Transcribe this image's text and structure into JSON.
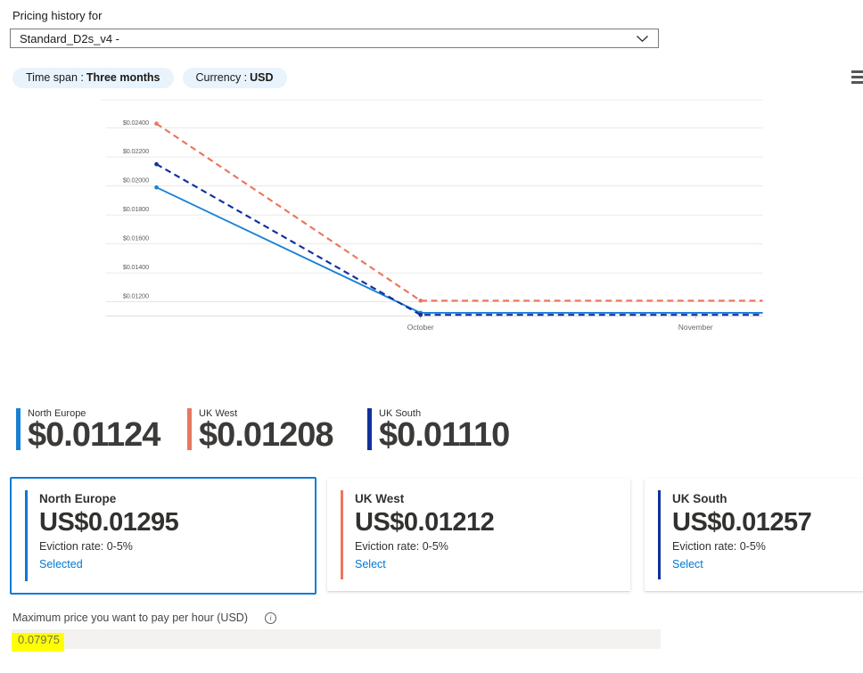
{
  "header": {
    "title": "Pricing history for",
    "dropdown_value": "Standard_D2s_v4 -",
    "filters": {
      "time_span_label": "Time span :",
      "time_span_value": "Three months",
      "currency_label": "Currency :",
      "currency_value": "USD"
    }
  },
  "colors": {
    "accent": "#0f7bd4",
    "link": "#0078d4",
    "pill_bg": "#e8f3fb",
    "north_europe": "#1981d4",
    "uk_west": "#e97760",
    "uk_south": "#10309e",
    "highlight": "#ffff00"
  },
  "chart_data": {
    "type": "line",
    "title": "",
    "xlabel": "",
    "ylabel": "",
    "grid": true,
    "legend_position": "bottom-left",
    "x_unit": "months (0 = October, 1 = November)",
    "x_range": [
      -0.96,
      1.244
    ],
    "ylim": [
      0.011,
      0.0245
    ],
    "y_ticks": [
      {
        "value": 0.024,
        "label": "$0.02400"
      },
      {
        "value": 0.022,
        "label": "$0.02200"
      },
      {
        "value": 0.02,
        "label": "$0.02000"
      },
      {
        "value": 0.018,
        "label": "$0.01800"
      },
      {
        "value": 0.016,
        "label": "$0.01600"
      },
      {
        "value": 0.014,
        "label": "$0.01400"
      },
      {
        "value": 0.012,
        "label": "$0.01200"
      }
    ],
    "x_ticks": [
      {
        "pos": 0,
        "label": "October"
      },
      {
        "pos": 1,
        "label": "November"
      }
    ],
    "series": [
      {
        "name": "North Europe",
        "color": "#1981d4",
        "line_style": "solid",
        "points": [
          {
            "x": -0.96,
            "y": 0.0199,
            "marker": true
          },
          {
            "x": 0,
            "y": 0.01124,
            "marker": true
          },
          {
            "x": 1.244,
            "y": 0.01124,
            "marker": false
          }
        ]
      },
      {
        "name": "UK West",
        "color": "#e97760",
        "line_style": "dashed",
        "points": [
          {
            "x": -0.96,
            "y": 0.0243,
            "marker": true
          },
          {
            "x": 0,
            "y": 0.01208,
            "marker": true
          },
          {
            "x": 1.244,
            "y": 0.01208,
            "marker": false
          }
        ]
      },
      {
        "name": "UK South",
        "color": "#10309e",
        "line_style": "dashed",
        "points": [
          {
            "x": -0.96,
            "y": 0.0215,
            "marker": true
          },
          {
            "x": 0,
            "y": 0.0111,
            "marker": true
          },
          {
            "x": 1.244,
            "y": 0.0111,
            "marker": false
          }
        ]
      }
    ]
  },
  "legend": {
    "items": [
      {
        "name": "North Europe",
        "price": "$0.01124",
        "color": "#1981d4"
      },
      {
        "name": "UK West",
        "price": "$0.01208",
        "color": "#e97760"
      },
      {
        "name": "UK South",
        "price": "$0.01110",
        "color": "#10309e"
      }
    ]
  },
  "cards": [
    {
      "region": "North Europe",
      "price": "US$0.01295",
      "eviction": "Eviction rate: 0-5%",
      "action": "Selected",
      "accent": "#1373d6",
      "selected": true
    },
    {
      "region": "UK West",
      "price": "US$0.01212",
      "eviction": "Eviction rate: 0-5%",
      "action": "Select",
      "accent": "#e97760",
      "selected": false
    },
    {
      "region": "UK South",
      "price": "US$0.01257",
      "eviction": "Eviction rate: 0-5%",
      "action": "Select",
      "accent": "#10309e",
      "selected": false
    }
  ],
  "footer": {
    "label": "Maximum price you want to pay per hour (USD)",
    "value": "0.07975"
  }
}
